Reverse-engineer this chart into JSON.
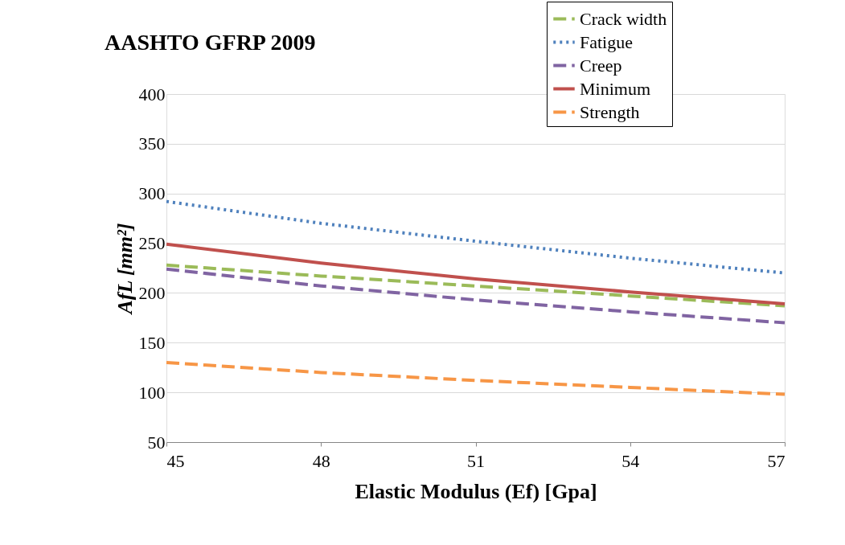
{
  "chart_data": {
    "type": "line",
    "title": "AASHTO GFRP 2009",
    "xlabel": "Elastic Modulus (Ef) [Gpa]",
    "ylabel": "AfL [mm²]",
    "x": [
      45,
      48,
      51,
      54,
      57
    ],
    "series": [
      {
        "name": "Crack width",
        "color": "#9bbb59",
        "line_style": "dashed",
        "values": [
          228,
          217,
          207,
          197,
          187
        ]
      },
      {
        "name": "Fatigue",
        "color": "#4f81bd",
        "line_style": "dotted",
        "values": [
          292,
          270,
          252,
          235,
          220
        ]
      },
      {
        "name": "Creep",
        "color": "#8064a2",
        "line_style": "dashed",
        "values": [
          224,
          207,
          193,
          181,
          170
        ]
      },
      {
        "name": "Minimum",
        "color": "#c0504d",
        "line_style": "solid",
        "values": [
          249,
          230,
          214,
          201,
          189
        ]
      },
      {
        "name": "Strength",
        "color": "#f79646",
        "line_style": "dashed",
        "values": [
          130,
          120,
          112,
          105,
          98
        ]
      }
    ],
    "xlim": [
      45,
      57
    ],
    "xticks": [
      45,
      48,
      51,
      54,
      57
    ],
    "ylim": [
      50,
      400
    ],
    "yticks": [
      50,
      100,
      150,
      200,
      250,
      300,
      350,
      400
    ],
    "grid": "y",
    "legend": "top right",
    "marker": "none"
  }
}
